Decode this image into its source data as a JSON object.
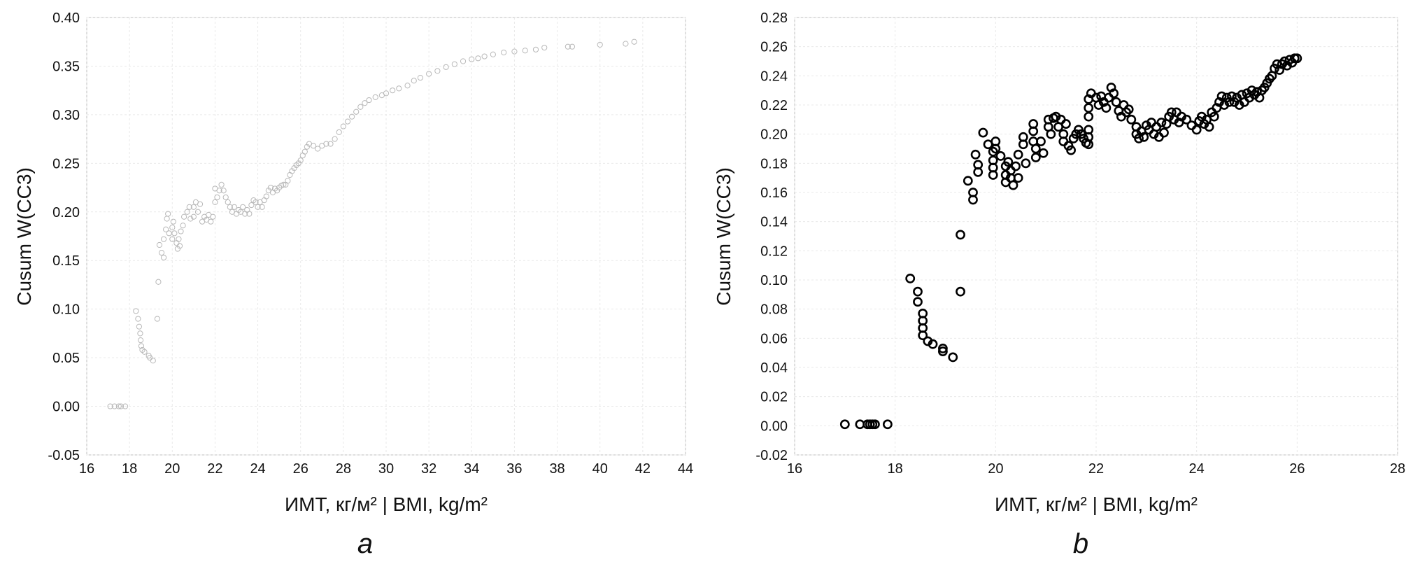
{
  "chart_data": [
    {
      "type": "scatter",
      "panel_label": "a",
      "xlabel": "ИМТ, кг/м² | BMI, kg/m²",
      "ylabel": "Cusum W(CC3)",
      "xlim": [
        16,
        44
      ],
      "ylim": [
        -0.05,
        0.4
      ],
      "xticks": [
        16,
        18,
        20,
        22,
        24,
        26,
        28,
        30,
        32,
        34,
        36,
        38,
        40,
        42,
        44
      ],
      "yticks": [
        -0.05,
        0.0,
        0.05,
        0.1,
        0.15,
        0.2,
        0.25,
        0.3,
        0.35,
        0.4
      ],
      "ytick_decimals": 2,
      "grid": true,
      "marker_color": "#b8b8b8",
      "points": [
        [
          17.1,
          0.0
        ],
        [
          17.3,
          0.0
        ],
        [
          17.5,
          0.0
        ],
        [
          17.6,
          0.0
        ],
        [
          17.8,
          0.0
        ],
        [
          18.3,
          0.098
        ],
        [
          18.4,
          0.09
        ],
        [
          18.45,
          0.082
        ],
        [
          18.5,
          0.075
        ],
        [
          18.52,
          0.068
        ],
        [
          18.55,
          0.062
        ],
        [
          18.6,
          0.058
        ],
        [
          18.7,
          0.056
        ],
        [
          18.9,
          0.052
        ],
        [
          18.95,
          0.05
        ],
        [
          19.1,
          0.047
        ],
        [
          19.3,
          0.09
        ],
        [
          19.35,
          0.128
        ],
        [
          19.4,
          0.166
        ],
        [
          19.5,
          0.158
        ],
        [
          19.6,
          0.153
        ],
        [
          19.6,
          0.172
        ],
        [
          19.7,
          0.182
        ],
        [
          19.75,
          0.193
        ],
        [
          19.8,
          0.198
        ],
        [
          19.85,
          0.178
        ],
        [
          20.0,
          0.172
        ],
        [
          20.0,
          0.184
        ],
        [
          20.05,
          0.19
        ],
        [
          20.1,
          0.178
        ],
        [
          20.2,
          0.168
        ],
        [
          20.25,
          0.162
        ],
        [
          20.3,
          0.172
        ],
        [
          20.35,
          0.165
        ],
        [
          20.4,
          0.18
        ],
        [
          20.5,
          0.186
        ],
        [
          20.55,
          0.195
        ],
        [
          20.7,
          0.2
        ],
        [
          20.8,
          0.205
        ],
        [
          20.85,
          0.193
        ],
        [
          21.0,
          0.195
        ],
        [
          21.0,
          0.205
        ],
        [
          21.1,
          0.21
        ],
        [
          21.2,
          0.2
        ],
        [
          21.3,
          0.208
        ],
        [
          21.4,
          0.19
        ],
        [
          21.5,
          0.195
        ],
        [
          21.6,
          0.192
        ],
        [
          21.7,
          0.197
        ],
        [
          21.8,
          0.19
        ],
        [
          21.9,
          0.195
        ],
        [
          22.0,
          0.21
        ],
        [
          22.0,
          0.224
        ],
        [
          22.1,
          0.215
        ],
        [
          22.2,
          0.222
        ],
        [
          22.3,
          0.228
        ],
        [
          22.4,
          0.222
        ],
        [
          22.5,
          0.215
        ],
        [
          22.6,
          0.21
        ],
        [
          22.7,
          0.205
        ],
        [
          22.8,
          0.2
        ],
        [
          22.9,
          0.205
        ],
        [
          23.0,
          0.198
        ],
        [
          23.1,
          0.202
        ],
        [
          23.2,
          0.2
        ],
        [
          23.3,
          0.205
        ],
        [
          23.4,
          0.198
        ],
        [
          23.5,
          0.202
        ],
        [
          23.6,
          0.198
        ],
        [
          23.7,
          0.207
        ],
        [
          23.8,
          0.212
        ],
        [
          23.9,
          0.21
        ],
        [
          24.0,
          0.205
        ],
        [
          24.1,
          0.21
        ],
        [
          24.2,
          0.205
        ],
        [
          24.3,
          0.212
        ],
        [
          24.4,
          0.216
        ],
        [
          24.5,
          0.222
        ],
        [
          24.6,
          0.225
        ],
        [
          24.7,
          0.22
        ],
        [
          24.8,
          0.224
        ],
        [
          24.9,
          0.222
        ],
        [
          25.0,
          0.225
        ],
        [
          25.1,
          0.227
        ],
        [
          25.2,
          0.228
        ],
        [
          25.3,
          0.228
        ],
        [
          25.4,
          0.232
        ],
        [
          25.5,
          0.238
        ],
        [
          25.6,
          0.242
        ],
        [
          25.7,
          0.245
        ],
        [
          25.8,
          0.248
        ],
        [
          25.9,
          0.25
        ],
        [
          26.0,
          0.253
        ],
        [
          26.1,
          0.258
        ],
        [
          26.2,
          0.262
        ],
        [
          26.3,
          0.267
        ],
        [
          26.4,
          0.27
        ],
        [
          26.6,
          0.268
        ],
        [
          26.8,
          0.265
        ],
        [
          27.0,
          0.268
        ],
        [
          27.2,
          0.27
        ],
        [
          27.4,
          0.27
        ],
        [
          27.6,
          0.275
        ],
        [
          27.8,
          0.282
        ],
        [
          28.0,
          0.288
        ],
        [
          28.2,
          0.293
        ],
        [
          28.4,
          0.298
        ],
        [
          28.6,
          0.303
        ],
        [
          28.8,
          0.308
        ],
        [
          29.0,
          0.312
        ],
        [
          29.2,
          0.315
        ],
        [
          29.5,
          0.318
        ],
        [
          29.8,
          0.32
        ],
        [
          30.0,
          0.322
        ],
        [
          30.3,
          0.325
        ],
        [
          30.6,
          0.327
        ],
        [
          31.0,
          0.33
        ],
        [
          31.3,
          0.335
        ],
        [
          31.6,
          0.338
        ],
        [
          32.0,
          0.342
        ],
        [
          32.4,
          0.345
        ],
        [
          32.8,
          0.349
        ],
        [
          33.2,
          0.352
        ],
        [
          33.6,
          0.355
        ],
        [
          34.0,
          0.357
        ],
        [
          34.3,
          0.358
        ],
        [
          34.6,
          0.36
        ],
        [
          35.0,
          0.362
        ],
        [
          35.5,
          0.364
        ],
        [
          36.0,
          0.365
        ],
        [
          36.5,
          0.366
        ],
        [
          37.0,
          0.367
        ],
        [
          37.4,
          0.369
        ],
        [
          38.5,
          0.37
        ],
        [
          38.7,
          0.37
        ],
        [
          40.0,
          0.372
        ],
        [
          41.2,
          0.373
        ],
        [
          41.6,
          0.375
        ]
      ]
    },
    {
      "type": "scatter",
      "panel_label": "b",
      "xlabel": "ИМТ, кг/м² | BMI, kg/m²",
      "ylabel": "Cusum W(CC3)",
      "xlim": [
        16,
        28
      ],
      "ylim": [
        -0.02,
        0.28
      ],
      "xticks": [
        16,
        18,
        20,
        22,
        24,
        26,
        28
      ],
      "yticks": [
        -0.02,
        0.0,
        0.02,
        0.04,
        0.06,
        0.08,
        0.1,
        0.12,
        0.14,
        0.16,
        0.18,
        0.2,
        0.22,
        0.24,
        0.26,
        0.28
      ],
      "ytick_decimals": 2,
      "grid": true,
      "marker_color": "#000000",
      "points": [
        [
          17.0,
          0.001
        ],
        [
          17.3,
          0.001
        ],
        [
          17.45,
          0.001
        ],
        [
          17.5,
          0.001
        ],
        [
          17.55,
          0.001
        ],
        [
          17.6,
          0.001
        ],
        [
          17.85,
          0.001
        ],
        [
          18.3,
          0.101
        ],
        [
          18.45,
          0.092
        ],
        [
          18.45,
          0.085
        ],
        [
          18.55,
          0.077
        ],
        [
          18.55,
          0.072
        ],
        [
          18.55,
          0.067
        ],
        [
          18.55,
          0.062
        ],
        [
          18.65,
          0.058
        ],
        [
          18.75,
          0.056
        ],
        [
          18.95,
          0.053
        ],
        [
          18.95,
          0.051
        ],
        [
          19.15,
          0.047
        ],
        [
          19.3,
          0.131
        ],
        [
          19.3,
          0.092
        ],
        [
          19.45,
          0.168
        ],
        [
          19.55,
          0.16
        ],
        [
          19.55,
          0.155
        ],
        [
          19.6,
          0.186
        ],
        [
          19.65,
          0.179
        ],
        [
          19.65,
          0.174
        ],
        [
          19.75,
          0.201
        ],
        [
          19.85,
          0.193
        ],
        [
          19.95,
          0.188
        ],
        [
          19.95,
          0.182
        ],
        [
          19.95,
          0.177
        ],
        [
          19.95,
          0.172
        ],
        [
          20.0,
          0.195
        ],
        [
          20.0,
          0.19
        ],
        [
          20.1,
          0.185
        ],
        [
          20.2,
          0.178
        ],
        [
          20.2,
          0.172
        ],
        [
          20.2,
          0.167
        ],
        [
          20.25,
          0.181
        ],
        [
          20.3,
          0.175
        ],
        [
          20.3,
          0.17
        ],
        [
          20.35,
          0.165
        ],
        [
          20.4,
          0.178
        ],
        [
          20.45,
          0.17
        ],
        [
          20.45,
          0.186
        ],
        [
          20.55,
          0.193
        ],
        [
          20.55,
          0.198
        ],
        [
          20.6,
          0.18
        ],
        [
          20.75,
          0.207
        ],
        [
          20.75,
          0.202
        ],
        [
          20.75,
          0.195
        ],
        [
          20.8,
          0.19
        ],
        [
          20.8,
          0.184
        ],
        [
          20.9,
          0.195
        ],
        [
          20.95,
          0.187
        ],
        [
          21.05,
          0.21
        ],
        [
          21.05,
          0.205
        ],
        [
          21.1,
          0.2
        ],
        [
          21.15,
          0.211
        ],
        [
          21.2,
          0.212
        ],
        [
          21.25,
          0.205
        ],
        [
          21.3,
          0.21
        ],
        [
          21.35,
          0.2
        ],
        [
          21.35,
          0.195
        ],
        [
          21.4,
          0.207
        ],
        [
          21.45,
          0.192
        ],
        [
          21.5,
          0.189
        ],
        [
          21.55,
          0.197
        ],
        [
          21.6,
          0.2
        ],
        [
          21.65,
          0.203
        ],
        [
          21.7,
          0.2
        ],
        [
          21.75,
          0.197
        ],
        [
          21.8,
          0.194
        ],
        [
          21.85,
          0.193
        ],
        [
          21.85,
          0.198
        ],
        [
          21.85,
          0.203
        ],
        [
          21.85,
          0.212
        ],
        [
          21.85,
          0.218
        ],
        [
          21.85,
          0.224
        ],
        [
          21.9,
          0.228
        ],
        [
          22.0,
          0.225
        ],
        [
          22.05,
          0.22
        ],
        [
          22.1,
          0.226
        ],
        [
          22.15,
          0.222
        ],
        [
          22.2,
          0.218
        ],
        [
          22.25,
          0.225
        ],
        [
          22.3,
          0.232
        ],
        [
          22.35,
          0.228
        ],
        [
          22.4,
          0.222
        ],
        [
          22.45,
          0.216
        ],
        [
          22.5,
          0.212
        ],
        [
          22.55,
          0.22
        ],
        [
          22.6,
          0.215
        ],
        [
          22.65,
          0.217
        ],
        [
          22.7,
          0.21
        ],
        [
          22.8,
          0.205
        ],
        [
          22.8,
          0.2
        ],
        [
          22.85,
          0.197
        ],
        [
          22.9,
          0.202
        ],
        [
          22.95,
          0.198
        ],
        [
          23.0,
          0.206
        ],
        [
          23.05,
          0.203
        ],
        [
          23.1,
          0.208
        ],
        [
          23.15,
          0.2
        ],
        [
          23.2,
          0.205
        ],
        [
          23.25,
          0.198
        ],
        [
          23.3,
          0.208
        ],
        [
          23.35,
          0.201
        ],
        [
          23.4,
          0.207
        ],
        [
          23.45,
          0.212
        ],
        [
          23.5,
          0.215
        ],
        [
          23.55,
          0.21
        ],
        [
          23.6,
          0.215
        ],
        [
          23.65,
          0.208
        ],
        [
          23.7,
          0.212
        ],
        [
          23.8,
          0.21
        ],
        [
          23.9,
          0.206
        ],
        [
          24.0,
          0.203
        ],
        [
          24.05,
          0.209
        ],
        [
          24.1,
          0.212
        ],
        [
          24.15,
          0.207
        ],
        [
          24.2,
          0.21
        ],
        [
          24.25,
          0.205
        ],
        [
          24.3,
          0.215
        ],
        [
          24.35,
          0.212
        ],
        [
          24.4,
          0.218
        ],
        [
          24.45,
          0.222
        ],
        [
          24.5,
          0.226
        ],
        [
          24.55,
          0.22
        ],
        [
          24.6,
          0.225
        ],
        [
          24.65,
          0.222
        ],
        [
          24.7,
          0.226
        ],
        [
          24.75,
          0.222
        ],
        [
          24.8,
          0.225
        ],
        [
          24.85,
          0.22
        ],
        [
          24.9,
          0.227
        ],
        [
          24.95,
          0.222
        ],
        [
          25.0,
          0.228
        ],
        [
          25.05,
          0.225
        ],
        [
          25.1,
          0.23
        ],
        [
          25.15,
          0.227
        ],
        [
          25.2,
          0.229
        ],
        [
          25.25,
          0.225
        ],
        [
          25.3,
          0.23
        ],
        [
          25.35,
          0.232
        ],
        [
          25.4,
          0.235
        ],
        [
          25.45,
          0.238
        ],
        [
          25.5,
          0.24
        ],
        [
          25.55,
          0.245
        ],
        [
          25.6,
          0.248
        ],
        [
          25.65,
          0.244
        ],
        [
          25.7,
          0.248
        ],
        [
          25.75,
          0.25
        ],
        [
          25.8,
          0.247
        ],
        [
          25.85,
          0.251
        ],
        [
          25.9,
          0.249
        ],
        [
          25.95,
          0.252
        ],
        [
          26.0,
          0.252
        ]
      ]
    }
  ]
}
